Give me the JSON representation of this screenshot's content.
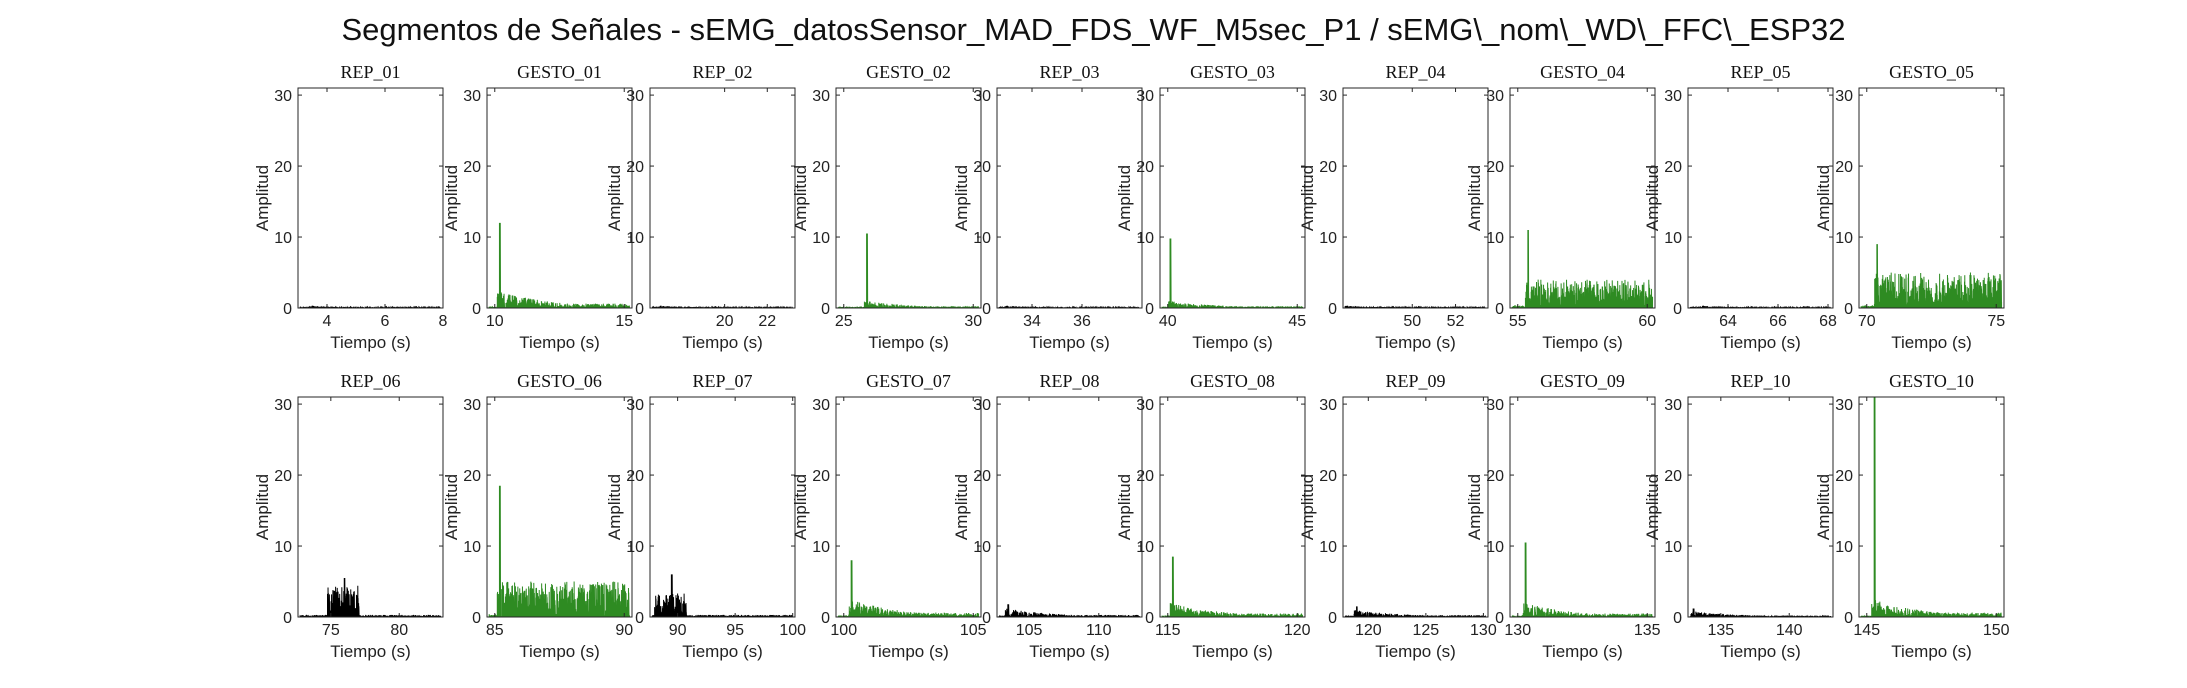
{
  "figure": {
    "title": "Segmentos de Señales - sEMG_datosSensor_MAD_FDS_WF_M5sec_P1 / sEMG\\_nom\\_WD\\_FFC\\_ESP32",
    "colors": {
      "rep": "#000000",
      "gesto": "#2e8b22",
      "axis": "#262626",
      "background": "#ffffff"
    }
  },
  "chart_data": [
    {
      "type": "line",
      "title": "REP_01",
      "xlabel": "Tiempo (s)",
      "ylabel": "Amplitud",
      "xlim": [
        3,
        8
      ],
      "ylim": [
        0,
        31
      ],
      "xticks": [
        4,
        6,
        8
      ],
      "yticks": [
        0,
        10,
        20,
        30
      ],
      "color": "#000000",
      "series": [
        {
          "peak_time": 3.5,
          "peak_amplitude": 0.3,
          "burst_amplitude": 0.3
        }
      ]
    },
    {
      "type": "line",
      "title": "GESTO_01",
      "xlabel": "Tiempo (s)",
      "ylabel": "Amplitud",
      "xlim": [
        9.7,
        15.3
      ],
      "ylim": [
        0,
        31
      ],
      "xticks": [
        10,
        15
      ],
      "yticks": [
        0,
        10,
        20,
        30
      ],
      "color": "#2e8b22",
      "series": [
        {
          "peak_time": 10.2,
          "peak_amplitude": 12,
          "burst_amplitude": 2.5
        }
      ]
    },
    {
      "type": "line",
      "title": "REP_02",
      "xlabel": "Tiempo (s)",
      "ylabel": "Amplitud",
      "xlim": [
        16.5,
        23.3
      ],
      "ylim": [
        0,
        31
      ],
      "xticks": [
        20,
        22
      ],
      "yticks": [
        0,
        10,
        20,
        30
      ],
      "color": "#000000",
      "series": [
        {
          "peak_time": 17,
          "peak_amplitude": 0.3,
          "burst_amplitude": 0.3
        }
      ]
    },
    {
      "type": "line",
      "title": "GESTO_02",
      "xlabel": "Tiempo (s)",
      "ylabel": "Amplitud",
      "xlim": [
        24.7,
        30.3
      ],
      "ylim": [
        0,
        31
      ],
      "xticks": [
        25,
        30
      ],
      "yticks": [
        0,
        10,
        20,
        30
      ],
      "color": "#2e8b22",
      "series": [
        {
          "peak_time": 25.9,
          "peak_amplitude": 10.5,
          "burst_amplitude": 1
        }
      ]
    },
    {
      "type": "line",
      "title": "REP_03",
      "xlabel": "Tiempo (s)",
      "ylabel": "Amplitud",
      "xlim": [
        32.6,
        38.4
      ],
      "ylim": [
        0,
        31
      ],
      "xticks": [
        34,
        36
      ],
      "yticks": [
        0,
        10,
        20,
        30
      ],
      "color": "#000000",
      "series": [
        {
          "peak_time": 33,
          "peak_amplitude": 0.3,
          "burst_amplitude": 0.3
        }
      ]
    },
    {
      "type": "line",
      "title": "GESTO_03",
      "xlabel": "Tiempo (s)",
      "ylabel": "Amplitud",
      "xlim": [
        39.7,
        45.3
      ],
      "ylim": [
        0,
        31
      ],
      "xticks": [
        40,
        45
      ],
      "yticks": [
        0,
        10,
        20,
        30
      ],
      "color": "#2e8b22",
      "series": [
        {
          "peak_time": 40.1,
          "peak_amplitude": 9.8,
          "burst_amplitude": 1
        }
      ]
    },
    {
      "type": "line",
      "title": "REP_04",
      "xlabel": "Tiempo (s)",
      "ylabel": "Amplitud",
      "xlim": [
        46.8,
        53.5
      ],
      "ylim": [
        0,
        31
      ],
      "xticks": [
        50,
        52
      ],
      "yticks": [
        0,
        10,
        20,
        30
      ],
      "color": "#000000",
      "series": [
        {
          "peak_time": 47,
          "peak_amplitude": 0.3,
          "burst_amplitude": 0.3
        }
      ]
    },
    {
      "type": "line",
      "title": "GESTO_04",
      "xlabel": "Tiempo (s)",
      "ylabel": "Amplitud",
      "xlim": [
        54.7,
        60.3
      ],
      "ylim": [
        0,
        31
      ],
      "xticks": [
        55,
        60
      ],
      "yticks": [
        0,
        10,
        20,
        30
      ],
      "color": "#2e8b22",
      "series": [
        {
          "peak_time": 55.4,
          "peak_amplitude": 11,
          "burst_amplitude": 4
        }
      ]
    },
    {
      "type": "line",
      "title": "REP_05",
      "xlabel": "Tiempo (s)",
      "ylabel": "Amplitud",
      "xlim": [
        62.4,
        68.2
      ],
      "ylim": [
        0,
        31
      ],
      "xticks": [
        64,
        66,
        68
      ],
      "yticks": [
        0,
        10,
        20,
        30
      ],
      "color": "#000000",
      "series": [
        {
          "peak_time": 63,
          "peak_amplitude": 0.3,
          "burst_amplitude": 0.3
        }
      ]
    },
    {
      "type": "line",
      "title": "GESTO_05",
      "xlabel": "Tiempo (s)",
      "ylabel": "Amplitud",
      "xlim": [
        69.7,
        75.3
      ],
      "ylim": [
        0,
        31
      ],
      "xticks": [
        70,
        75
      ],
      "yticks": [
        0,
        10,
        20,
        30
      ],
      "color": "#2e8b22",
      "series": [
        {
          "peak_time": 70.4,
          "peak_amplitude": 9,
          "burst_amplitude": 5
        }
      ]
    },
    {
      "type": "line",
      "title": "REP_06",
      "xlabel": "Tiempo (s)",
      "ylabel": "Amplitud",
      "xlim": [
        72.6,
        83.2
      ],
      "ylim": [
        0,
        31
      ],
      "xticks": [
        75,
        80
      ],
      "yticks": [
        0,
        10,
        20,
        30
      ],
      "color": "#000000",
      "series": [
        {
          "peak_time": 76,
          "peak_amplitude": 5.5,
          "burst_amplitude": 4.5
        }
      ]
    },
    {
      "type": "line",
      "title": "GESTO_06",
      "xlabel": "Tiempo (s)",
      "ylabel": "Amplitud",
      "xlim": [
        84.7,
        90.3
      ],
      "ylim": [
        0,
        31
      ],
      "xticks": [
        85,
        90
      ],
      "yticks": [
        0,
        10,
        20,
        30
      ],
      "color": "#2e8b22",
      "series": [
        {
          "peak_time": 85.2,
          "peak_amplitude": 18.5,
          "burst_amplitude": 5
        }
      ]
    },
    {
      "type": "line",
      "title": "REP_07",
      "xlabel": "Tiempo (s)",
      "ylabel": "Amplitud",
      "xlim": [
        87.6,
        100.2
      ],
      "ylim": [
        0,
        31
      ],
      "xticks": [
        90,
        95,
        100
      ],
      "yticks": [
        0,
        10,
        20,
        30
      ],
      "color": "#000000",
      "series": [
        {
          "peak_time": 89.5,
          "peak_amplitude": 6,
          "burst_amplitude": 3.5
        }
      ]
    },
    {
      "type": "line",
      "title": "GESTO_07",
      "xlabel": "Tiempo (s)",
      "ylabel": "Amplitud",
      "xlim": [
        99.7,
        105.3
      ],
      "ylim": [
        0,
        31
      ],
      "xticks": [
        100,
        105
      ],
      "yticks": [
        0,
        10,
        20,
        30
      ],
      "color": "#2e8b22",
      "series": [
        {
          "peak_time": 100.3,
          "peak_amplitude": 8,
          "burst_amplitude": 2.5
        }
      ]
    },
    {
      "type": "line",
      "title": "REP_08",
      "xlabel": "Tiempo (s)",
      "ylabel": "Amplitud",
      "xlim": [
        102.7,
        113.1
      ],
      "ylim": [
        0,
        31
      ],
      "xticks": [
        105,
        110
      ],
      "yticks": [
        0,
        10,
        20,
        30
      ],
      "color": "#000000",
      "series": [
        {
          "peak_time": 103.5,
          "peak_amplitude": 1.8,
          "burst_amplitude": 1.2
        }
      ]
    },
    {
      "type": "line",
      "title": "GESTO_08",
      "xlabel": "Tiempo (s)",
      "ylabel": "Amplitud",
      "xlim": [
        114.7,
        120.3
      ],
      "ylim": [
        0,
        31
      ],
      "xticks": [
        115,
        120
      ],
      "yticks": [
        0,
        10,
        20,
        30
      ],
      "color": "#2e8b22",
      "series": [
        {
          "peak_time": 115.2,
          "peak_amplitude": 8.5,
          "burst_amplitude": 2
        }
      ]
    },
    {
      "type": "line",
      "title": "REP_09",
      "xlabel": "Tiempo (s)",
      "ylabel": "Amplitud",
      "xlim": [
        117.8,
        130.4
      ],
      "ylim": [
        0,
        31
      ],
      "xticks": [
        120,
        125,
        130
      ],
      "yticks": [
        0,
        10,
        20,
        30
      ],
      "color": "#000000",
      "series": [
        {
          "peak_time": 119,
          "peak_amplitude": 1.5,
          "burst_amplitude": 1
        }
      ]
    },
    {
      "type": "line",
      "title": "GESTO_09",
      "xlabel": "Tiempo (s)",
      "ylabel": "Amplitud",
      "xlim": [
        129.7,
        135.3
      ],
      "ylim": [
        0,
        31
      ],
      "xticks": [
        130,
        135
      ],
      "yticks": [
        0,
        10,
        20,
        30
      ],
      "color": "#2e8b22",
      "series": [
        {
          "peak_time": 130.3,
          "peak_amplitude": 10.5,
          "burst_amplitude": 2
        }
      ]
    },
    {
      "type": "line",
      "title": "REP_10",
      "xlabel": "Tiempo (s)",
      "ylabel": "Amplitud",
      "xlim": [
        132.6,
        143.2
      ],
      "ylim": [
        0,
        31
      ],
      "xticks": [
        135,
        140
      ],
      "yticks": [
        0,
        10,
        20,
        30
      ],
      "color": "#000000",
      "series": [
        {
          "peak_time": 133,
          "peak_amplitude": 1.2,
          "burst_amplitude": 0.8
        }
      ]
    },
    {
      "type": "line",
      "title": "GESTO_10",
      "xlabel": "Tiempo (s)",
      "ylabel": "Amplitud",
      "xlim": [
        144.7,
        150.3
      ],
      "ylim": [
        0,
        31
      ],
      "xticks": [
        145,
        150
      ],
      "yticks": [
        0,
        10,
        20,
        30
      ],
      "color": "#2e8b22",
      "series": [
        {
          "peak_time": 145.3,
          "peak_amplitude": 31,
          "burst_amplitude": 2.5
        }
      ]
    }
  ]
}
